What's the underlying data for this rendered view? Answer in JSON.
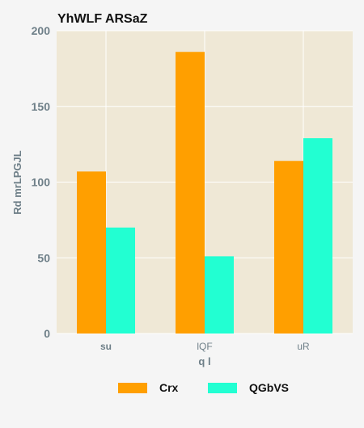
{
  "colors": {
    "background": "#f5f5f5",
    "plot_bg": "#efe8d6",
    "grid": "#ffffff",
    "text": "#111111",
    "axis_text": "#6e7f88",
    "series_1": "#ff9f00",
    "series_2": "#22ffd2"
  },
  "chart_data": {
    "type": "bar",
    "title": "YhWLF  ARSaZ",
    "xlabel": "q  l",
    "ylabel": "Rd mrLPGJL",
    "categories": [
      "su",
      "lQF",
      "uR"
    ],
    "series": [
      {
        "name": "Crx",
        "values": [
          107,
          186,
          114
        ]
      },
      {
        "name": "QGbVS",
        "values": [
          70,
          51,
          129
        ]
      }
    ],
    "ylim": [
      0,
      200
    ],
    "yticks": [
      0,
      50,
      100,
      150,
      200
    ],
    "grid": true,
    "legend": "bottom-center"
  }
}
